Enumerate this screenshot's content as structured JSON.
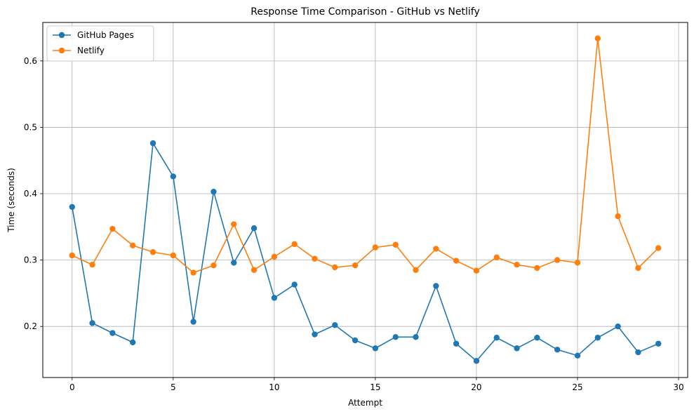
{
  "chart_data": {
    "type": "line",
    "title": "Response Time Comparison - GitHub vs Netlify",
    "xlabel": "Attempt",
    "ylabel": "Time (seconds)",
    "xlim": [
      -1.45,
      30.45
    ],
    "ylim": [
      0.123,
      0.658
    ],
    "xticks": [
      0,
      5,
      10,
      15,
      20,
      25,
      30
    ],
    "yticks": [
      0.2,
      0.3,
      0.4,
      0.5,
      0.6
    ],
    "grid": true,
    "legend_position": "top-left",
    "x": [
      0,
      1,
      2,
      3,
      4,
      5,
      6,
      7,
      8,
      9,
      10,
      11,
      12,
      13,
      14,
      15,
      16,
      17,
      18,
      19,
      20,
      21,
      22,
      23,
      24,
      25,
      26,
      27,
      28,
      29
    ],
    "series": [
      {
        "name": "GitHub Pages",
        "color": "#1f77b4",
        "values": [
          0.38,
          0.205,
          0.19,
          0.176,
          0.476,
          0.426,
          0.207,
          0.403,
          0.296,
          0.348,
          0.243,
          0.263,
          0.188,
          0.202,
          0.179,
          0.167,
          0.184,
          0.184,
          0.261,
          0.174,
          0.148,
          0.183,
          0.167,
          0.183,
          0.165,
          0.156,
          0.183,
          0.2,
          0.161,
          0.174
        ]
      },
      {
        "name": "Netlify",
        "color": "#ff7f0e",
        "values": [
          0.307,
          0.293,
          0.347,
          0.322,
          0.312,
          0.307,
          0.281,
          0.292,
          0.354,
          0.285,
          0.305,
          0.324,
          0.302,
          0.289,
          0.292,
          0.319,
          0.323,
          0.285,
          0.317,
          0.299,
          0.284,
          0.304,
          0.293,
          0.288,
          0.3,
          0.296,
          0.634,
          0.366,
          0.288,
          0.318
        ]
      }
    ]
  }
}
